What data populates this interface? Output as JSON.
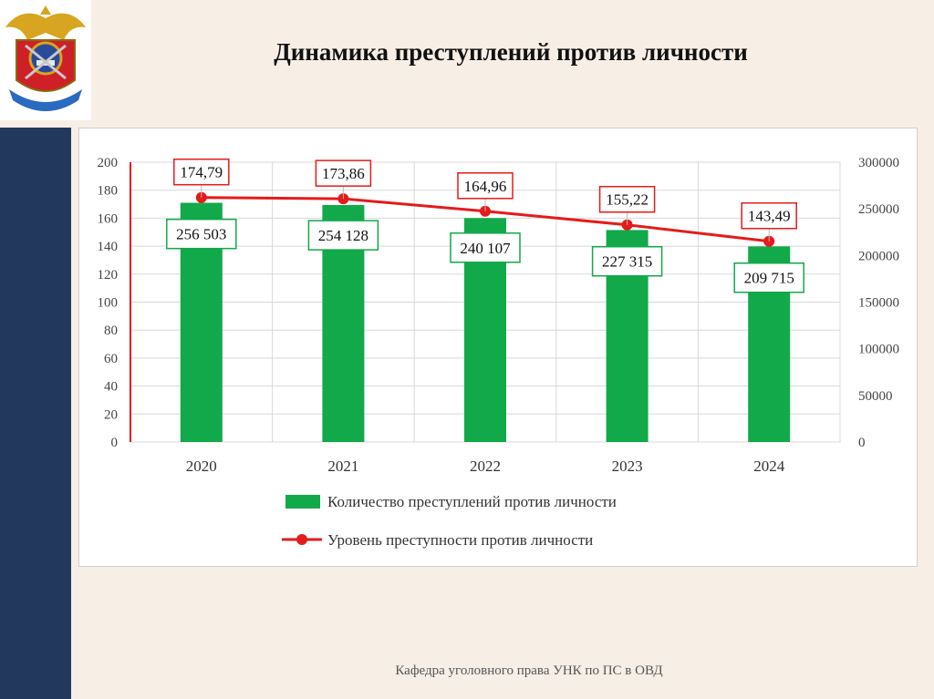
{
  "page": {
    "title": "Динамика преступлений против личности",
    "footer": "Кафедра уголовного права УНК по ПС в ОВД"
  },
  "colors": {
    "bars": "#12a94a",
    "line": "#e41b1b",
    "sidebar": "#22385c",
    "background": "#f7eee6"
  },
  "chart_data": {
    "type": "bar",
    "categories": [
      "2020",
      "2021",
      "2022",
      "2023",
      "2024"
    ],
    "series": [
      {
        "name": "Количество преступлений против личности",
        "kind": "bar",
        "axis": "right",
        "values": [
          256503,
          254128,
          240107,
          227315,
          209715
        ],
        "labels": [
          "256 503",
          "254 128",
          "240 107",
          "227 315",
          "209 715"
        ]
      },
      {
        "name": "Уровень преступности против личности",
        "kind": "line",
        "axis": "left",
        "values": [
          174.79,
          173.86,
          164.96,
          155.22,
          143.49
        ],
        "labels": [
          "174,79",
          "173,86",
          "164,96",
          "155,22",
          "143,49"
        ]
      }
    ],
    "y_left": {
      "min": 0,
      "max": 200,
      "ticks": [
        "0",
        "20",
        "40",
        "60",
        "80",
        "100",
        "120",
        "140",
        "160",
        "180",
        "200"
      ]
    },
    "y_right": {
      "min": 0,
      "max": 300000,
      "ticks": [
        "0",
        "50000",
        "100000",
        "150000",
        "200000",
        "250000",
        "300000"
      ]
    },
    "grid": true,
    "legend_position": "bottom"
  }
}
